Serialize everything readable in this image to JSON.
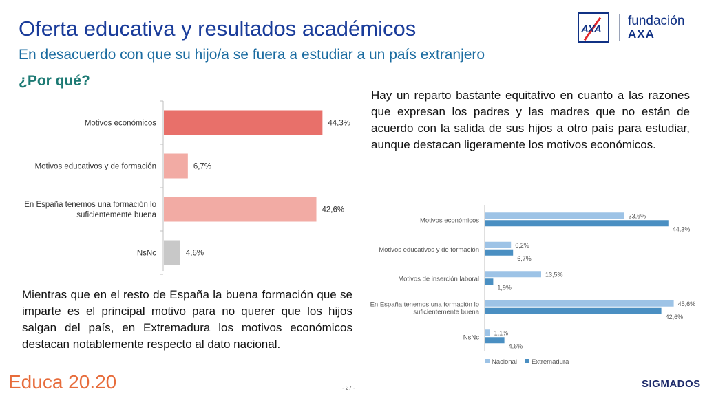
{
  "header": {
    "title": "Oferta educativa y resultados académicos",
    "subtitle": "En desacuerdo con que su hijo/a se fuera a estudiar a un país extranjero",
    "question": "¿Por qué?"
  },
  "logo": {
    "axa_mark": "AXA",
    "fundacion_word": "fundación",
    "fundacion_brand": "AXA"
  },
  "texts": {
    "right_paragraph": "Hay un reparto bastante equitativo en cuanto a las razones que expresan los padres y las madres que no están de acuerdo con la salida de sus hijos a otro país para estudiar, aunque destacan ligeramente los motivos económicos.",
    "left_paragraph": "Mientras que en el resto de España la buena formación que se imparte es el principal motivo para no querer que los hijos salgan del país, en Extremadura los motivos económicos destacan notablemente respecto al dato nacional."
  },
  "footer": {
    "brand": "Educa 20.20",
    "page": "- 27 -",
    "company": "SIGMADOS"
  },
  "colors": {
    "title": "#1a3c9a",
    "bar_dark": "#e8706a",
    "bar_light": "#f2aba4",
    "bar_grey": "#c8c8c8",
    "nacional": "#9dc3e6",
    "extremadura": "#4a8fc2"
  },
  "chart_data": [
    {
      "type": "bar",
      "orientation": "horizontal",
      "categories": [
        [
          "Motivos económicos"
        ],
        [
          "Motivos educativos y de formación"
        ],
        [
          "En España tenemos una formación lo",
          "suficientemente buena"
        ],
        [
          "NsNc"
        ]
      ],
      "values": [
        44.3,
        6.7,
        42.6,
        4.6
      ],
      "value_labels": [
        "44,3%",
        "6,7%",
        "42,6%",
        "4,6%"
      ],
      "bar_colors": [
        "#e8706a",
        "#f2aba4",
        "#f2aba4",
        "#c8c8c8"
      ],
      "xlim": [
        0,
        50
      ]
    },
    {
      "type": "bar",
      "orientation": "horizontal",
      "categories": [
        [
          "Motivos económicos"
        ],
        [
          "Motivos educativos y de formación"
        ],
        [
          "Motivos de inserción laboral"
        ],
        [
          "En España tenemos una formación lo",
          "suficientemente buena"
        ],
        [
          "NsNc"
        ]
      ],
      "series": [
        {
          "name": "Nacional",
          "color": "#9dc3e6",
          "values": [
            33.6,
            6.2,
            13.5,
            45.6,
            1.1
          ],
          "labels": [
            "33,6%",
            "6,2%",
            "13,5%",
            "45,6%",
            "1,1%"
          ]
        },
        {
          "name": "Extremadura",
          "color": "#4a8fc2",
          "values": [
            44.3,
            6.7,
            1.9,
            42.6,
            4.6
          ],
          "labels": [
            "44,3%",
            "6,7%",
            "1,9%",
            "42,6%",
            "4,6%"
          ]
        }
      ],
      "legend": "bottom",
      "xlim": [
        0,
        50
      ]
    }
  ]
}
